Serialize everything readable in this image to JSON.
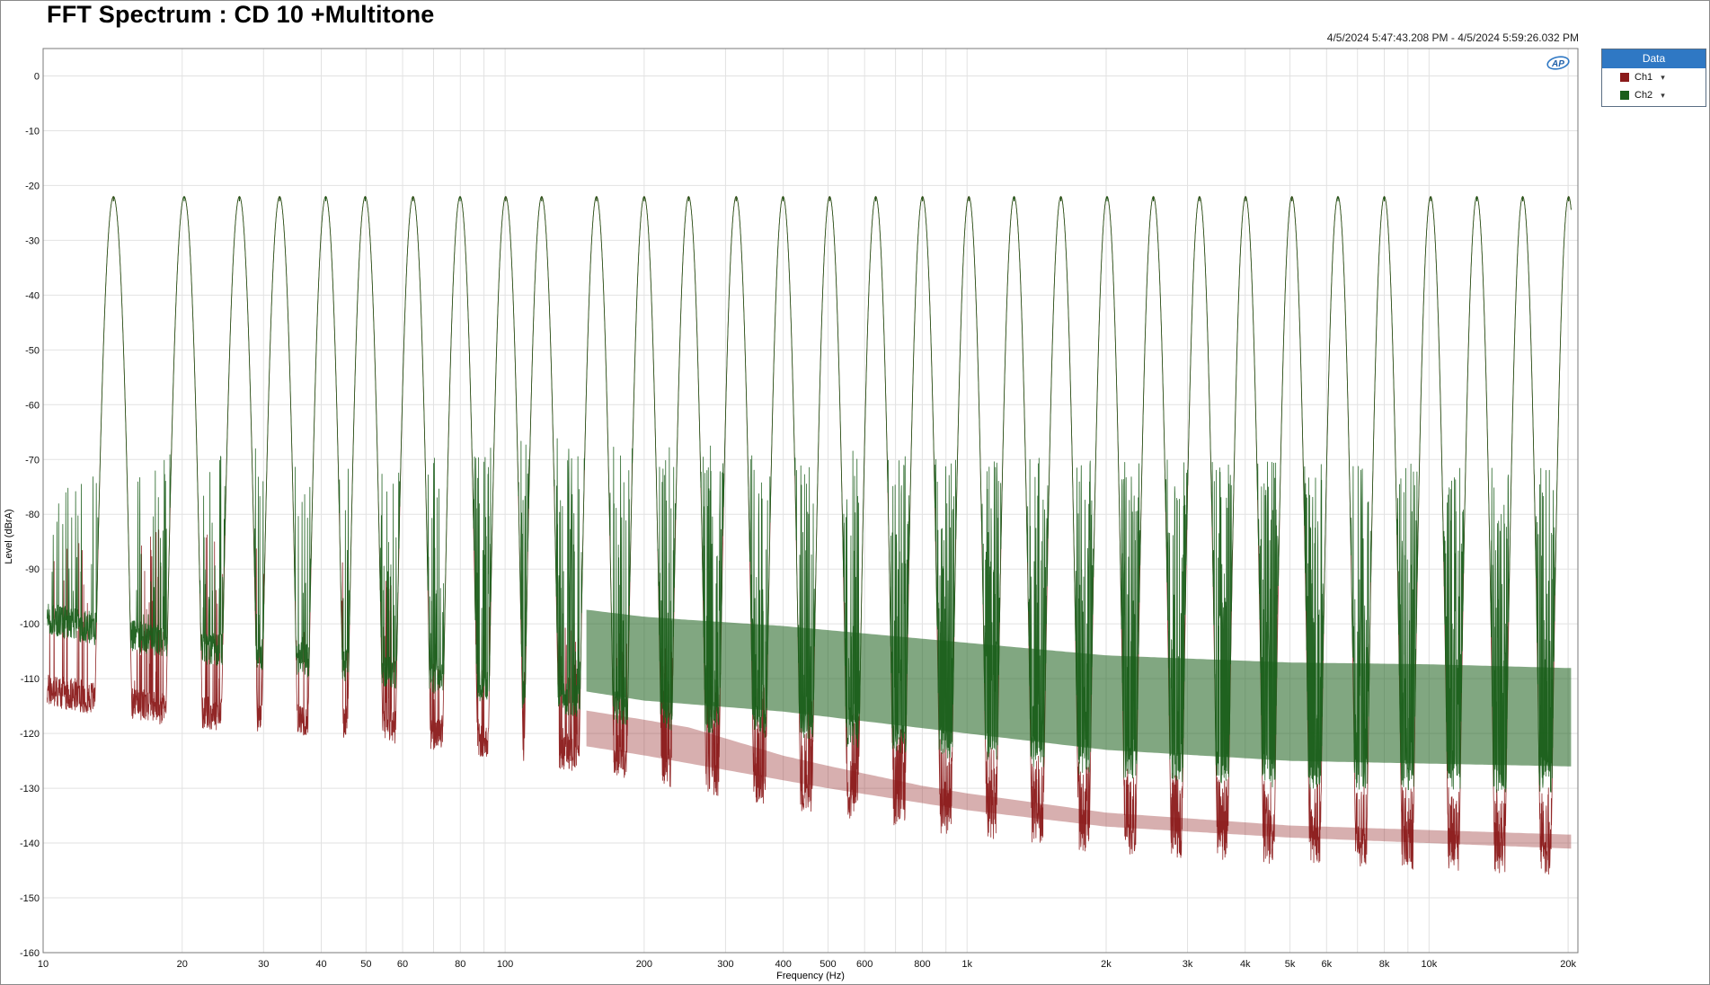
{
  "window": {
    "title": "FFT Spectrum : CD 10 +Multitone",
    "timestamp": "4/5/2024 5:47:43.208 PM - 4/5/2024 5:59:26.032 PM"
  },
  "legend": {
    "header": "Data",
    "entries": [
      {
        "label": "Ch1",
        "caret": "▾",
        "color": "#8b1a1a"
      },
      {
        "label": "Ch2",
        "caret": "▾",
        "color": "#1a5e1a"
      }
    ]
  },
  "logo": {
    "icon": "ap-logo-icon",
    "text": "AP"
  },
  "chart_data": {
    "type": "line",
    "xscale": "log",
    "xlim": [
      10,
      21000
    ],
    "ylim": [
      -160,
      5
    ],
    "xlabel": "Frequency (Hz)",
    "ylabel": "Level (dBrA)",
    "grid": true,
    "legend_position": "outside-right-top",
    "xticks": [
      {
        "v": 10,
        "label": "10"
      },
      {
        "v": 20,
        "label": "20"
      },
      {
        "v": 30,
        "label": "30"
      },
      {
        "v": 40,
        "label": "40"
      },
      {
        "v": 50,
        "label": "50"
      },
      {
        "v": 60,
        "label": "60"
      },
      {
        "v": 80,
        "label": "80"
      },
      {
        "v": 100,
        "label": "100"
      },
      {
        "v": 200,
        "label": "200"
      },
      {
        "v": 300,
        "label": "300"
      },
      {
        "v": 400,
        "label": "400"
      },
      {
        "v": 500,
        "label": "500"
      },
      {
        "v": 600,
        "label": "600"
      },
      {
        "v": 800,
        "label": "800"
      },
      {
        "v": 1000,
        "label": "1k"
      },
      {
        "v": 2000,
        "label": "2k"
      },
      {
        "v": 3000,
        "label": "3k"
      },
      {
        "v": 4000,
        "label": "4k"
      },
      {
        "v": 5000,
        "label": "5k"
      },
      {
        "v": 6000,
        "label": "6k"
      },
      {
        "v": 8000,
        "label": "8k"
      },
      {
        "v": 10000,
        "label": "10k"
      },
      {
        "v": 20000,
        "label": "20k"
      }
    ],
    "yticks": [
      0,
      -10,
      -20,
      -30,
      -40,
      -50,
      -60,
      -70,
      -80,
      -90,
      -100,
      -110,
      -120,
      -130,
      -140,
      -150,
      -160
    ],
    "tones_hz": [
      14.2,
      20.2,
      26.6,
      32.5,
      40.9,
      49.8,
      63.2,
      79.9,
      100.3,
      120,
      157.7,
      200,
      249.6,
      316.4,
      399.6,
      504.1,
      634.3,
      800.8,
      1009,
      1264,
      1596,
      2009,
      2531,
      3185,
      4007,
      5048,
      6351,
      8001,
      10080,
      12690,
      15950,
      20050
    ],
    "tone_level_dbra": -22,
    "series": [
      {
        "name": "Ch1",
        "color": "#8b1a1a",
        "peak_db": -22,
        "floor_db": [
          [
            10,
            -112
          ],
          [
            20,
            -116
          ],
          [
            50,
            -118
          ],
          [
            100,
            -122
          ],
          [
            200,
            -126
          ],
          [
            500,
            -132
          ],
          [
            1000,
            -136
          ],
          [
            2000,
            -139
          ],
          [
            5000,
            -141
          ],
          [
            10000,
            -142
          ],
          [
            20000,
            -143
          ]
        ],
        "intermod_top_db": [
          [
            10,
            -87
          ],
          [
            20,
            -80
          ],
          [
            50,
            -90
          ],
          [
            100,
            -96
          ],
          [
            150,
            -100
          ],
          [
            250,
            -103
          ],
          [
            400,
            -112
          ],
          [
            800,
            -120
          ],
          [
            2000,
            -126
          ],
          [
            5000,
            -129
          ],
          [
            20000,
            -130
          ]
        ]
      },
      {
        "name": "Ch2",
        "color": "#1a5e1a",
        "peak_db": -22,
        "floor_db": [
          [
            10,
            -99
          ],
          [
            20,
            -104
          ],
          [
            50,
            -108
          ],
          [
            100,
            -112
          ],
          [
            200,
            -116
          ],
          [
            400,
            -118
          ],
          [
            1000,
            -122
          ],
          [
            2000,
            -125
          ],
          [
            5000,
            -127
          ],
          [
            20000,
            -128
          ]
        ],
        "intermod_top_db": [
          [
            10,
            -77
          ],
          [
            20,
            -66
          ],
          [
            30,
            -68
          ],
          [
            50,
            -72
          ],
          [
            80,
            -68
          ],
          [
            100,
            -66
          ],
          [
            150,
            -66
          ],
          [
            250,
            -67
          ],
          [
            500,
            -68
          ],
          [
            1000,
            -69
          ],
          [
            2000,
            -70
          ],
          [
            5000,
            -70
          ],
          [
            10000,
            -70
          ],
          [
            20000,
            -71
          ]
        ]
      }
    ]
  }
}
